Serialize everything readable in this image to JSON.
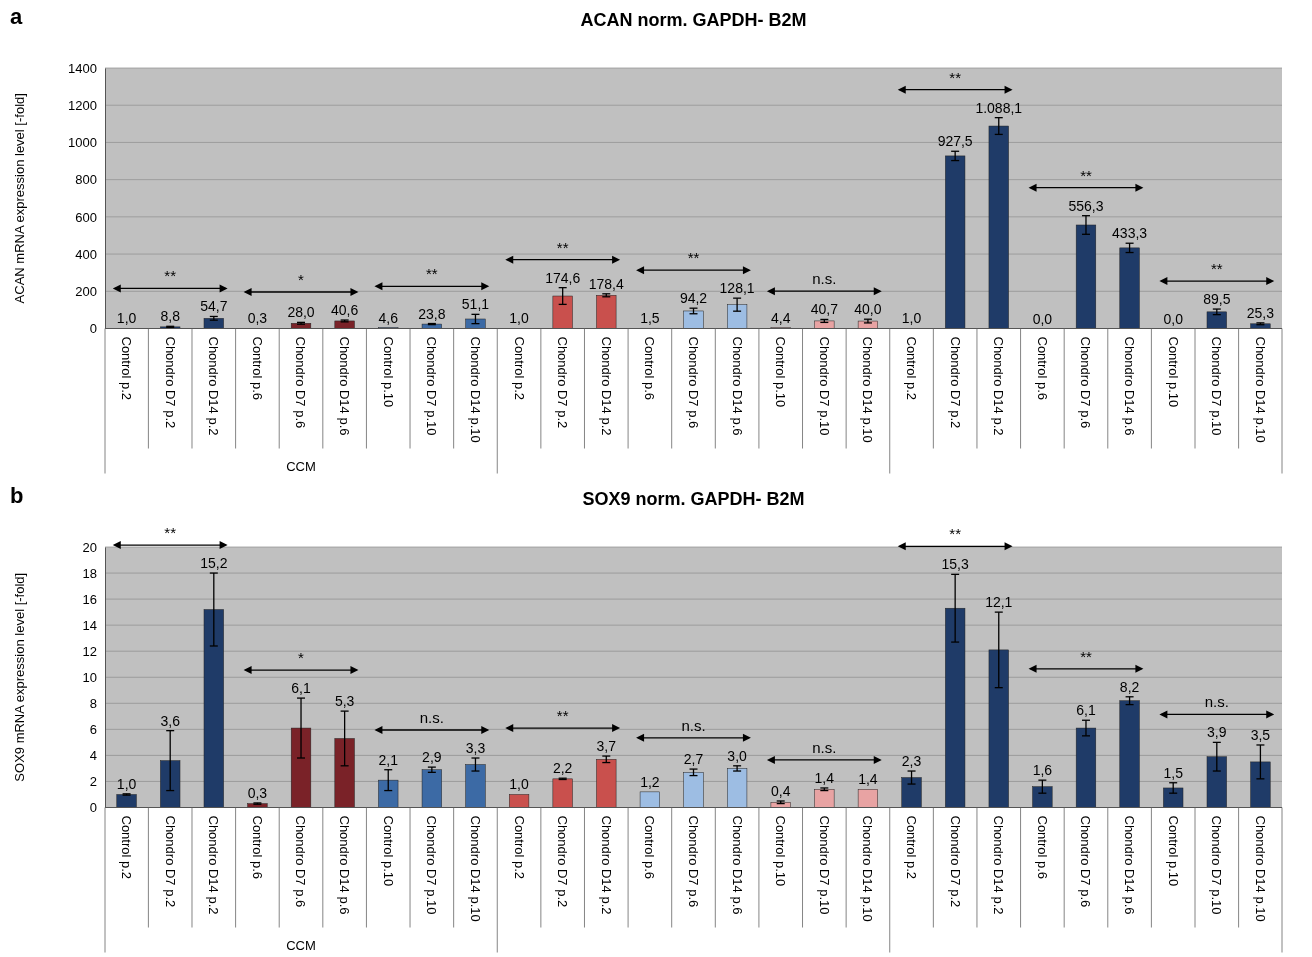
{
  "chart_data": [
    {
      "type": "bar",
      "title": "ACAN norm. GAPDH- B2M",
      "ylabel": "ACAN  mRNA expression level [-fold]",
      "categories": [
        "Control p.2",
        "Chondro D7 p.2",
        "Chondro D14 p.2",
        "Control p.6",
        "Chondro D7 p.6",
        "Chondro D14 p.6",
        "Control p.10",
        "Chondro D7 p.10",
        "Chondro D14 p.10",
        "Control p.2",
        "Chondro D7 p.2",
        "Chondro D14 p.2",
        "Control p.6",
        "Chondro D7 p.6",
        "Chondro D14 p.6",
        "Control p.10",
        "Chondro D7 p.10",
        "Chondro D14 p.10",
        "Control p.2",
        "Chondro D7 p.2",
        "Chondro D14 p.2",
        "Control p.6",
        "Chondro D7 p.6",
        "Chondro D14 p.6",
        "Control p.10",
        "Chondro D7 p.10",
        "Chondro D14 p.10"
      ],
      "values": [
        1.0,
        8.8,
        54.7,
        0.3,
        28.0,
        40.6,
        4.6,
        23.8,
        51.1,
        1.0,
        174.6,
        178.4,
        1.5,
        94.2,
        128.1,
        4.4,
        40.7,
        40.0,
        1.0,
        927.5,
        1088.1,
        0.0,
        556.3,
        433.3,
        0.0,
        89.5,
        25.3
      ],
      "value_labels": [
        "1,0",
        "8,8",
        "54,7",
        "0,3",
        "28,0",
        "40,6",
        "4,6",
        "23,8",
        "51,1",
        "1,0",
        "174,6",
        "178,4",
        "1,5",
        "94,2",
        "128,1",
        "4,4",
        "40,7",
        "40,0",
        "1,0",
        "927,5",
        "1.088,1",
        "0,0",
        "556,3",
        "433,3",
        "0,0",
        "89,5",
        "25,3"
      ],
      "errors": [
        null,
        3,
        10,
        null,
        5,
        5,
        null,
        3,
        25,
        null,
        45,
        8,
        null,
        15,
        35,
        null,
        8,
        10,
        null,
        25,
        45,
        null,
        50,
        25,
        null,
        15,
        5
      ],
      "colors": [
        "#1f3b68",
        "#1f3b68",
        "#1f3b68",
        "#7a2228",
        "#7a2228",
        "#7a2228",
        "#3c6aa5",
        "#3c6aa5",
        "#3c6aa5",
        "#c9504d",
        "#c9504d",
        "#c9504d",
        "#9dbde3",
        "#9dbde3",
        "#9dbde3",
        "#e8a3a3",
        "#e8a3a3",
        "#e8a3a3",
        "#1f3b68",
        "#1f3b68",
        "#1f3b68",
        "#1f3b68",
        "#1f3b68",
        "#1f3b68",
        "#1f3b68",
        "#1f3b68",
        "#1f3b68"
      ],
      "ylim": [
        0,
        1400
      ],
      "yticks": [
        0,
        200,
        400,
        600,
        800,
        1000,
        1200,
        1400
      ],
      "grid": "y",
      "annotations": [
        "a",
        "CCM",
        "**",
        "*",
        "**",
        "**",
        "**",
        "n.s.",
        "**",
        "**",
        "**"
      ]
    },
    {
      "type": "bar",
      "title": "SOX9 norm. GAPDH- B2M",
      "ylabel": "SOX9  mRNA expression level [-fold]",
      "categories": [
        "Control p.2",
        "Chondro D7 p.2",
        "Chondro D14 p.2",
        "Control p.6",
        "Chondro D7 p.6",
        "Chondro D14 p.6",
        "Control p.10",
        "Chondro D7 p.10",
        "Chondro D14 p.10",
        "Control p.2",
        "Chondro D7 p.2",
        "Chondro D14 p.2",
        "Control p.6",
        "Chondro D7 p.6",
        "Chondro D14 p.6",
        "Control p.10",
        "Chondro D7 p.10",
        "Chondro D14 p.10",
        "Control p.2",
        "Chondro D7 p.2",
        "Chondro D14 p.2",
        "Control p.6",
        "Chondro D7 p.6",
        "Chondro D14 p.6",
        "Control p.10",
        "Chondro D7 p.10",
        "Chondro D14 p.10"
      ],
      "values": [
        1.0,
        3.6,
        15.2,
        0.3,
        6.1,
        5.3,
        2.1,
        2.9,
        3.3,
        1.0,
        2.2,
        3.7,
        1.2,
        2.7,
        3.0,
        0.4,
        1.4,
        1.4,
        2.3,
        15.3,
        12.1,
        1.6,
        6.1,
        8.2,
        1.5,
        3.9,
        3.5
      ],
      "value_labels": [
        "1,0",
        "3,6",
        "15,2",
        "0,3",
        "6,1",
        "5,3",
        "2,1",
        "2,9",
        "3,3",
        "1,0",
        "2,2",
        "3,7",
        "1,2",
        "2,7",
        "3,0",
        "0,4",
        "1,4",
        "1,4",
        "2,3",
        "15,3",
        "12,1",
        "1,6",
        "6,1",
        "8,2",
        "1,5",
        "3,9",
        "3,5"
      ],
      "errors": [
        0.05,
        2.3,
        2.8,
        0.05,
        2.3,
        2.1,
        0.8,
        0.2,
        0.5,
        null,
        0.05,
        0.25,
        null,
        0.25,
        0.2,
        0.1,
        0.1,
        null,
        0.5,
        2.6,
        2.9,
        0.5,
        0.6,
        0.3,
        0.4,
        1.1,
        1.3
      ],
      "colors": [
        "#1f3b68",
        "#1f3b68",
        "#1f3b68",
        "#7a2228",
        "#7a2228",
        "#7a2228",
        "#3c6aa5",
        "#3c6aa5",
        "#3c6aa5",
        "#c9504d",
        "#c9504d",
        "#c9504d",
        "#9dbde3",
        "#9dbde3",
        "#9dbde3",
        "#e8a3a3",
        "#e8a3a3",
        "#e8a3a3",
        "#1f3b68",
        "#1f3b68",
        "#1f3b68",
        "#1f3b68",
        "#1f3b68",
        "#1f3b68",
        "#1f3b68",
        "#1f3b68",
        "#1f3b68"
      ],
      "ylim": [
        0,
        20
      ],
      "yticks": [
        0,
        2,
        4,
        6,
        8,
        10,
        12,
        14,
        16,
        18,
        20
      ],
      "grid": "y",
      "annotations": [
        "b",
        "CCM",
        "**",
        "*",
        "n.s.",
        "**",
        "n.s.",
        "n.s.",
        "**",
        "**",
        "n.s."
      ]
    }
  ]
}
